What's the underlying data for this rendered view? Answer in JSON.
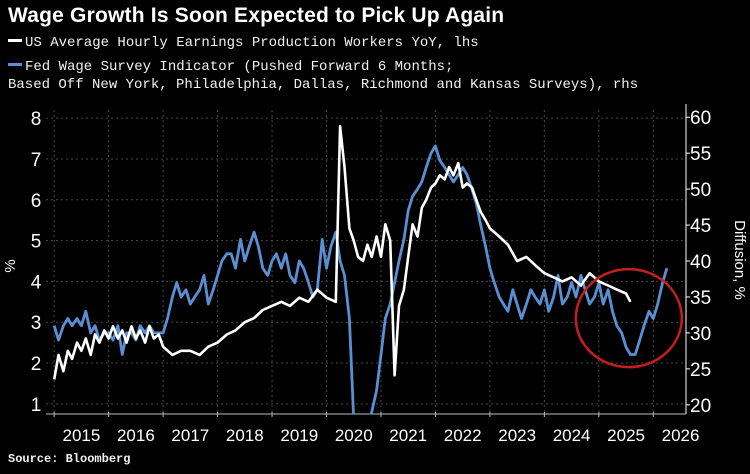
{
  "title": "Wage Growth Is Soon Expected to Pick Up Again",
  "legend": {
    "series_1": "US Average Hourly Earnings Production Workers YoY, lhs",
    "series_2_line1": "Fed Wage Survey Indicator (Pushed Forward 6 Months;",
    "series_2_line2": "Based Off New York, Philadelphia, Dallas, Richmond and Kansas Surveys), rhs"
  },
  "source": "Source: Bloomberg",
  "colors": {
    "background": "#000000",
    "series_1": "#ffffff",
    "series_2": "#5b8fd4",
    "circle": "#c41e1e",
    "grid": "#4a4a4a"
  },
  "chart_data": {
    "type": "line",
    "title": "Wage Growth Is Soon Expected to Pick Up Again",
    "xlabel": "",
    "ylabel_left": "%",
    "ylabel_right": "Diffusion, %",
    "x_ticks": [
      "2015",
      "2016",
      "2017",
      "2018",
      "2019",
      "2020",
      "2021",
      "2022",
      "2023",
      "2024",
      "2025",
      "2026"
    ],
    "xlim": [
      2014.85,
      2026.6
    ],
    "ylim_left": [
      0.8,
      8.2
    ],
    "ylim_right": [
      19,
      61
    ],
    "y_ticks_left": [
      1,
      2,
      3,
      4,
      5,
      6,
      7,
      8
    ],
    "y_ticks_right": [
      20,
      25,
      30,
      35,
      40,
      45,
      50,
      55,
      60
    ],
    "grid": true,
    "annotation": "red circle highlighting 2025-2026 period",
    "series": [
      {
        "name": "US Average Hourly Earnings Production Workers YoY",
        "axis": "left",
        "x": [
          2015.0,
          2015.08,
          2015.17,
          2015.25,
          2015.33,
          2015.42,
          2015.5,
          2015.58,
          2015.67,
          2015.75,
          2015.83,
          2015.92,
          2016.0,
          2016.08,
          2016.17,
          2016.25,
          2016.33,
          2016.42,
          2016.5,
          2016.58,
          2016.67,
          2016.75,
          2016.83,
          2016.92,
          2017.0,
          2017.17,
          2017.33,
          2017.5,
          2017.67,
          2017.83,
          2018.0,
          2018.17,
          2018.33,
          2018.5,
          2018.67,
          2018.83,
          2019.0,
          2019.17,
          2019.33,
          2019.5,
          2019.67,
          2019.83,
          2020.0,
          2020.17,
          2020.25,
          2020.33,
          2020.42,
          2020.5,
          2020.58,
          2020.67,
          2020.75,
          2020.83,
          2020.92,
          2021.0,
          2021.08,
          2021.17,
          2021.25,
          2021.33,
          2021.42,
          2021.5,
          2021.58,
          2021.67,
          2021.75,
          2021.83,
          2021.92,
          2022.0,
          2022.08,
          2022.17,
          2022.25,
          2022.33,
          2022.42,
          2022.5,
          2022.58,
          2022.67,
          2022.75,
          2022.83,
          2022.92,
          2023.0,
          2023.17,
          2023.33,
          2023.5,
          2023.67,
          2023.83,
          2024.0,
          2024.17,
          2024.33,
          2024.5,
          2024.67,
          2024.83,
          2025.0,
          2025.17,
          2025.33,
          2025.5,
          2025.58
        ],
        "values": [
          1.6,
          2.2,
          1.8,
          2.3,
          2.1,
          2.5,
          2.3,
          2.6,
          2.2,
          2.7,
          2.5,
          2.8,
          2.6,
          2.9,
          2.6,
          2.8,
          2.5,
          2.9,
          2.6,
          2.8,
          2.5,
          2.9,
          2.6,
          2.7,
          2.4,
          2.2,
          2.3,
          2.3,
          2.2,
          2.4,
          2.5,
          2.7,
          2.8,
          3.0,
          3.1,
          3.3,
          3.4,
          3.5,
          3.4,
          3.6,
          3.5,
          3.8,
          3.6,
          3.5,
          7.8,
          6.8,
          5.3,
          5.0,
          4.6,
          4.5,
          4.9,
          4.6,
          5.1,
          4.6,
          5.4,
          5.0,
          1.7,
          3.4,
          3.8,
          4.6,
          5.4,
          5.1,
          5.8,
          6.0,
          6.3,
          6.4,
          6.6,
          6.5,
          6.8,
          6.6,
          6.9,
          6.3,
          6.4,
          6.3,
          6.0,
          5.7,
          5.5,
          5.3,
          5.1,
          4.9,
          4.5,
          4.6,
          4.4,
          4.2,
          4.1,
          4.0,
          4.1,
          3.9,
          4.2,
          4.0,
          3.9,
          3.8,
          3.7,
          3.5
        ]
      },
      {
        "name": "Fed Wage Survey Indicator (Pushed Forward 6 Months)",
        "axis": "right",
        "x": [
          2015.0,
          2015.08,
          2015.17,
          2015.25,
          2015.33,
          2015.42,
          2015.5,
          2015.58,
          2015.67,
          2015.75,
          2015.83,
          2015.92,
          2016.0,
          2016.08,
          2016.17,
          2016.25,
          2016.33,
          2016.42,
          2016.5,
          2016.58,
          2016.67,
          2016.75,
          2016.83,
          2016.92,
          2017.0,
          2017.08,
          2017.17,
          2017.25,
          2017.33,
          2017.42,
          2017.5,
          2017.58,
          2017.67,
          2017.75,
          2017.83,
          2017.92,
          2018.0,
          2018.08,
          2018.17,
          2018.25,
          2018.33,
          2018.42,
          2018.5,
          2018.58,
          2018.67,
          2018.75,
          2018.83,
          2018.92,
          2019.0,
          2019.08,
          2019.17,
          2019.25,
          2019.33,
          2019.42,
          2019.5,
          2019.58,
          2019.67,
          2019.75,
          2019.83,
          2019.92,
          2020.0,
          2020.08,
          2020.17,
          2020.25,
          2020.33,
          2020.42,
          2020.5,
          2020.58,
          2020.67,
          2020.75,
          2020.83,
          2020.92,
          2021.0,
          2021.08,
          2021.17,
          2021.25,
          2021.33,
          2021.42,
          2021.5,
          2021.58,
          2021.67,
          2021.75,
          2021.83,
          2021.92,
          2022.0,
          2022.08,
          2022.17,
          2022.25,
          2022.33,
          2022.42,
          2022.5,
          2022.58,
          2022.67,
          2022.75,
          2022.83,
          2022.92,
          2023.0,
          2023.08,
          2023.17,
          2023.25,
          2023.33,
          2023.42,
          2023.5,
          2023.58,
          2023.67,
          2023.75,
          2023.83,
          2023.92,
          2024.0,
          2024.08,
          2024.17,
          2024.25,
          2024.33,
          2024.42,
          2024.5,
          2024.58,
          2024.67,
          2024.75,
          2024.83,
          2024.92,
          2025.0,
          2025.08,
          2025.17,
          2025.25,
          2025.33,
          2025.42,
          2025.5,
          2025.58,
          2025.67,
          2025.75,
          2025.83,
          2025.92,
          2026.0,
          2026.08,
          2026.17,
          2026.25
        ],
        "values": [
          31,
          29,
          31,
          32,
          31,
          32,
          31,
          33,
          30,
          31,
          29,
          30,
          30,
          29,
          31,
          27,
          30,
          30,
          29,
          31,
          30,
          31,
          30,
          30,
          30,
          32,
          35,
          37,
          35,
          36,
          34,
          35,
          36,
          38,
          34,
          36,
          38,
          40,
          41,
          41,
          39,
          43,
          40,
          42,
          44,
          42,
          39,
          38,
          40,
          41,
          39,
          41,
          38,
          37,
          40,
          39,
          37,
          35,
          36,
          43,
          39,
          42,
          44,
          40,
          38,
          32,
          18,
          15,
          18,
          15,
          19,
          22,
          27,
          32,
          34,
          37,
          40,
          43,
          47,
          49,
          50,
          51,
          53,
          55,
          56,
          54,
          53,
          52,
          51,
          52,
          53,
          52,
          50,
          48,
          45,
          42,
          39,
          37,
          35,
          34,
          33,
          36,
          34,
          32,
          34,
          36,
          35,
          34,
          36,
          33,
          35,
          38,
          34,
          35,
          37,
          35,
          38,
          36,
          34,
          35,
          37,
          34,
          36,
          33,
          31,
          30,
          28,
          27,
          27,
          29,
          31,
          33,
          32,
          34,
          37,
          39
        ]
      }
    ]
  }
}
